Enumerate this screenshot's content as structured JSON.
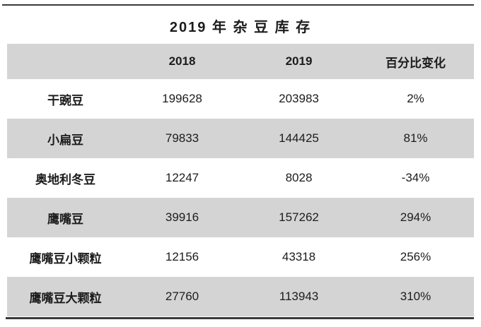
{
  "title": "2019 年 杂 豆 库 存",
  "colors": {
    "background": "#ffffff",
    "row_alt": "#d4d4d4",
    "rule": "#3a3a3a",
    "text": "#1c1c1c"
  },
  "table": {
    "columns": [
      "",
      "2018",
      "2019",
      "百分比变化"
    ],
    "rows": [
      [
        "干豌豆",
        "199628",
        "203983",
        "2%"
      ],
      [
        "小扁豆",
        "79833",
        "144425",
        "81%"
      ],
      [
        "奥地利冬豆",
        "12247",
        "8028",
        "-34%"
      ],
      [
        "鹰嘴豆",
        "39916",
        "157262",
        "294%"
      ],
      [
        "鹰嘴豆小颗粒",
        "12156",
        "43318",
        "256%"
      ],
      [
        "鹰嘴豆大颗粒",
        "27760",
        "113943",
        "310%"
      ]
    ]
  },
  "chart_data": {
    "type": "table",
    "title": "2019 年 杂 豆 库 存",
    "columns": [
      "",
      "2018",
      "2019",
      "百分比变化"
    ],
    "categories": [
      "干豌豆",
      "小扁豆",
      "奥地利冬豆",
      "鹰嘴豆",
      "鹰嘴豆小颗粒",
      "鹰嘴豆大颗粒"
    ],
    "series": [
      {
        "name": "2018",
        "values": [
          199628,
          79833,
          12247,
          39916,
          12156,
          27760
        ]
      },
      {
        "name": "2019",
        "values": [
          203983,
          144425,
          8028,
          157262,
          43318,
          113943
        ]
      },
      {
        "name": "百分比变化",
        "values": [
          "2%",
          "81%",
          "-34%",
          "294%",
          "256%",
          "310%"
        ]
      }
    ],
    "layout": {
      "striped_rows": true,
      "header_background": "#d4d4d4",
      "top_and_bottom_rules": true
    }
  }
}
